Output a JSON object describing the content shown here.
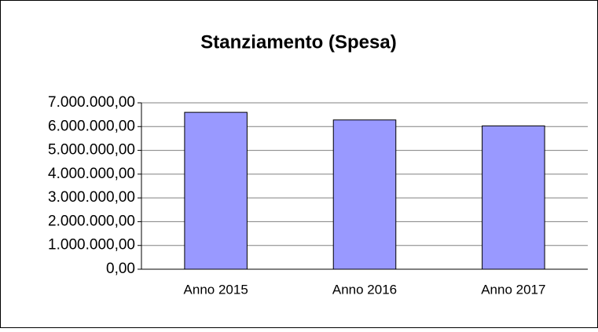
{
  "chart_data": {
    "type": "bar",
    "title": "Stanziamento (Spesa)",
    "categories": [
      "Anno 2015",
      "Anno 2016",
      "Anno 2017"
    ],
    "values": [
      6600000,
      6280000,
      6030000
    ],
    "color": "#9999ff",
    "ylim": [
      0,
      7000000
    ],
    "yticks": [
      {
        "value": 0,
        "label": "0,00"
      },
      {
        "value": 1000000,
        "label": "1.000.000,00"
      },
      {
        "value": 2000000,
        "label": "2.000.000,00"
      },
      {
        "value": 3000000,
        "label": "3.000.000,00"
      },
      {
        "value": 4000000,
        "label": "4.000.000,00"
      },
      {
        "value": 5000000,
        "label": "5.000.000,00"
      },
      {
        "value": 6000000,
        "label": "6.000.000,00"
      },
      {
        "value": 7000000,
        "label": "7.000.000,00"
      }
    ],
    "grid": true
  }
}
